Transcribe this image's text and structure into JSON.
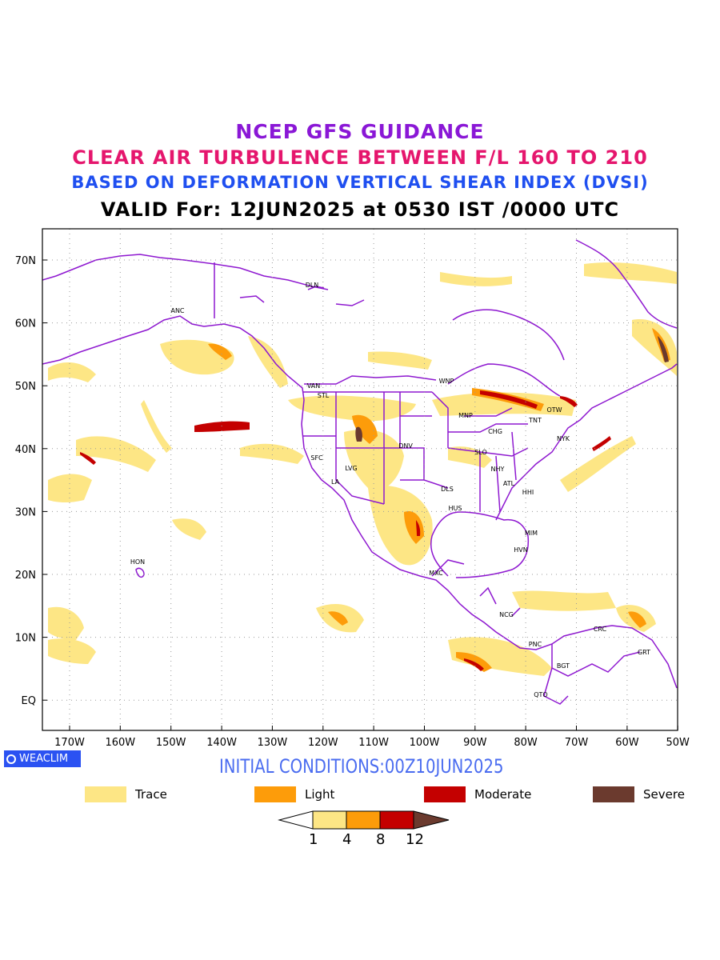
{
  "titles": {
    "line1": "NCEP GFS GUIDANCE",
    "line2": "CLEAR AIR TURBULENCE BETWEEN F/L 160 TO 210",
    "line3": "BASED ON DEFORMATION VERTICAL SHEAR INDEX (DVSI)",
    "line4": "VALID For: 12JUN2025 at 0530 IST /0000 UTC"
  },
  "axes": {
    "x_ticks": [
      "170W",
      "160W",
      "150W",
      "140W",
      "130W",
      "120W",
      "110W",
      "100W",
      "90W",
      "80W",
      "70W",
      "60W",
      "50W"
    ],
    "y_ticks": [
      "70N",
      "60N",
      "50N",
      "40N",
      "30N",
      "20N",
      "10N",
      "EQ"
    ]
  },
  "stations": [
    "DLN",
    "ANC",
    "VAN",
    "STL",
    "WNP",
    "OTW",
    "TNT",
    "MNP",
    "CHG",
    "NYK",
    "DNV",
    "SFC",
    "SLO",
    "LVG",
    "NHY",
    "LA",
    "DLS",
    "ATL",
    "HHI",
    "HUS",
    "MIM",
    "HON",
    "HVN",
    "MXC",
    "NCG",
    "CRC",
    "PNC",
    "GRT",
    "BGT",
    "QTO"
  ],
  "badge": "WEACLIM",
  "initial_conditions": "INITIAL CONDITIONS:00Z10JUN2025",
  "legend": [
    {
      "label": "Trace",
      "color": "#fde685"
    },
    {
      "label": "Light",
      "color": "#fd9c0a"
    },
    {
      "label": "Moderate",
      "color": "#c40000"
    },
    {
      "label": "Severe",
      "color": "#6b3a2e"
    }
  ],
  "colorbar": {
    "labels": [
      "1",
      "4",
      "8",
      "12"
    ],
    "colors": [
      "#ffffff",
      "#fde685",
      "#fd9c0a",
      "#c40000",
      "#6b3a2e"
    ]
  },
  "colors": {
    "coast": "#8e18d0",
    "grid": "#9a9a9a"
  }
}
